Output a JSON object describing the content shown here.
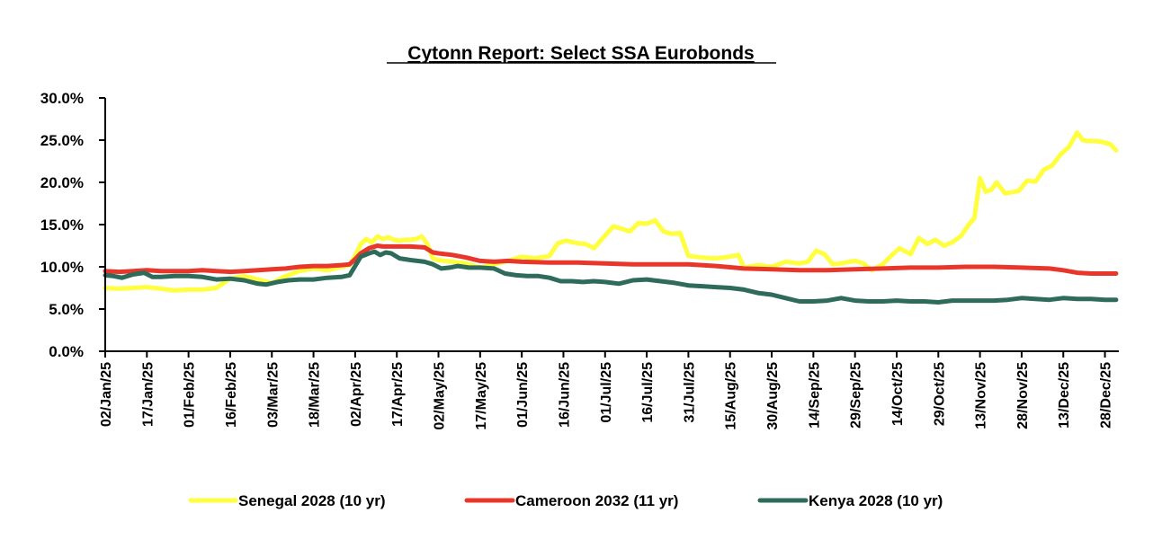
{
  "chart_data": {
    "type": "line",
    "title": "Cytonn Report: Select SSA Eurobonds",
    "xlabel": "",
    "ylabel": "",
    "ylim": [
      0,
      30
    ],
    "y_ticks": [
      "0.0%",
      "5.0%",
      "10.0%",
      "15.0%",
      "20.0%",
      "25.0%",
      "30.0%"
    ],
    "y_tick_values": [
      0,
      5,
      10,
      15,
      20,
      25,
      30
    ],
    "x_range_days": [
      0,
      365
    ],
    "x_ticks": [
      "02/Jan/25",
      "17/Jan/25",
      "01/Feb/25",
      "16/Feb/25",
      "03/Mar/25",
      "18/Mar/25",
      "02/Apr/25",
      "17/Apr/25",
      "02/May/25",
      "17/May/25",
      "01/Jun/25",
      "16/Jun/25",
      "01/Jul/25",
      "16/Jul/25",
      "31/Jul/25",
      "15/Aug/25",
      "30/Aug/25",
      "14/Sep/25",
      "29/Sep/25",
      "14/Oct/25",
      "29/Oct/25",
      "13/Nov/25",
      "28/Nov/25",
      "13/Dec/25",
      "28/Dec/25"
    ],
    "x_tick_days": [
      0,
      15,
      30,
      45,
      60,
      75,
      90,
      105,
      120,
      135,
      150,
      165,
      180,
      195,
      210,
      225,
      240,
      255,
      270,
      285,
      300,
      315,
      330,
      345,
      360
    ],
    "grid": false,
    "legend_position": "bottom",
    "series": [
      {
        "name": "Senegal 2028 (10 yr)",
        "color": "#FFFF3F",
        "days": [
          0,
          5,
          10,
          15,
          20,
          25,
          30,
          35,
          40,
          45,
          50,
          55,
          60,
          65,
          70,
          75,
          80,
          85,
          88,
          90,
          92,
          94,
          96,
          98,
          100,
          102,
          104,
          106,
          108,
          110,
          112,
          114,
          116,
          118,
          120,
          125,
          130,
          135,
          140,
          145,
          150,
          155,
          160,
          163,
          166,
          170,
          173,
          176,
          180,
          183,
          186,
          189,
          192,
          195,
          198,
          201,
          204,
          207,
          210,
          215,
          220,
          225,
          228,
          230,
          235,
          240,
          245,
          250,
          253,
          256,
          259,
          262,
          265,
          268,
          270,
          273,
          276,
          280,
          283,
          286,
          290,
          293,
          296,
          299,
          302,
          305,
          308,
          311,
          313,
          315,
          317,
          319,
          321,
          324,
          326,
          329,
          332,
          335,
          338,
          341,
          344,
          347,
          350,
          352,
          354,
          356,
          359,
          362,
          364
        ],
        "values": [
          7.5,
          7.4,
          7.5,
          7.6,
          7.4,
          7.2,
          7.3,
          7.3,
          7.5,
          8.6,
          8.9,
          8.5,
          8.1,
          8.9,
          9.5,
          9.8,
          9.6,
          10.0,
          10.2,
          11.3,
          12.7,
          13.3,
          12.9,
          13.6,
          13.3,
          13.5,
          13.2,
          13.1,
          13.2,
          13.2,
          13.3,
          13.6,
          12.7,
          11.0,
          10.8,
          10.6,
          10.4,
          9.9,
          10.3,
          10.7,
          11.2,
          11.0,
          11.3,
          12.8,
          13.1,
          12.8,
          12.7,
          12.2,
          13.7,
          14.8,
          14.5,
          14.2,
          15.2,
          15.1,
          15.5,
          14.2,
          13.9,
          14.0,
          11.3,
          11.1,
          11.0,
          11.2,
          11.4,
          9.9,
          10.2,
          10.0,
          10.6,
          10.4,
          10.6,
          11.9,
          11.5,
          10.3,
          10.4,
          10.6,
          10.7,
          10.4,
          9.6,
          10.3,
          11.3,
          12.2,
          11.5,
          13.4,
          12.7,
          13.2,
          12.5,
          12.9,
          13.6,
          15.0,
          15.8,
          20.5,
          18.9,
          19.1,
          20.0,
          18.7,
          18.8,
          19.0,
          20.2,
          20.1,
          21.5,
          22.0,
          23.3,
          24.2,
          25.9,
          25.0,
          24.9,
          24.9,
          24.8,
          24.5,
          23.8
        ]
      },
      {
        "name": "Cameroon 2032 (11 yr)",
        "color": "#E8372A",
        "days": [
          0,
          5,
          10,
          15,
          20,
          25,
          30,
          35,
          40,
          45,
          50,
          55,
          60,
          65,
          70,
          75,
          80,
          85,
          88,
          90,
          92,
          95,
          98,
          100,
          105,
          110,
          115,
          118,
          120,
          125,
          130,
          135,
          140,
          145,
          150,
          160,
          170,
          180,
          190,
          200,
          210,
          220,
          230,
          240,
          250,
          260,
          270,
          280,
          290,
          300,
          310,
          320,
          330,
          340,
          345,
          350,
          355,
          360,
          364
        ],
        "values": [
          9.5,
          9.4,
          9.5,
          9.6,
          9.5,
          9.5,
          9.5,
          9.6,
          9.5,
          9.4,
          9.5,
          9.6,
          9.7,
          9.8,
          10.0,
          10.1,
          10.1,
          10.2,
          10.3,
          10.9,
          11.6,
          12.2,
          12.5,
          12.4,
          12.4,
          12.4,
          12.3,
          11.7,
          11.6,
          11.4,
          11.1,
          10.7,
          10.6,
          10.7,
          10.6,
          10.5,
          10.5,
          10.4,
          10.3,
          10.3,
          10.3,
          10.1,
          9.8,
          9.7,
          9.6,
          9.6,
          9.7,
          9.8,
          9.9,
          9.9,
          10.0,
          10.0,
          9.9,
          9.8,
          9.6,
          9.3,
          9.2,
          9.2,
          9.2
        ]
      },
      {
        "name": "Kenya 2028 (10 yr)",
        "color": "#2E6B5B",
        "days": [
          0,
          3,
          6,
          10,
          14,
          17,
          20,
          25,
          30,
          35,
          40,
          45,
          50,
          55,
          58,
          62,
          66,
          70,
          75,
          80,
          85,
          88,
          90,
          92,
          95,
          97,
          99,
          101,
          103,
          106,
          110,
          115,
          118,
          121,
          124,
          127,
          131,
          135,
          140,
          144,
          148,
          152,
          156,
          160,
          164,
          168,
          172,
          176,
          180,
          185,
          190,
          195,
          200,
          205,
          210,
          215,
          220,
          225,
          230,
          235,
          240,
          245,
          250,
          255,
          260,
          265,
          270,
          275,
          280,
          285,
          290,
          295,
          300,
          305,
          310,
          320,
          325,
          330,
          335,
          340,
          345,
          350,
          355,
          360,
          364
        ],
        "values": [
          9.0,
          8.9,
          8.7,
          9.1,
          9.3,
          8.8,
          8.8,
          8.9,
          8.9,
          8.8,
          8.5,
          8.6,
          8.4,
          8.0,
          7.9,
          8.2,
          8.4,
          8.5,
          8.5,
          8.7,
          8.8,
          9.0,
          10.1,
          11.2,
          11.6,
          11.8,
          11.4,
          11.7,
          11.6,
          11.0,
          10.8,
          10.6,
          10.3,
          9.8,
          9.9,
          10.1,
          9.9,
          9.9,
          9.8,
          9.2,
          9.0,
          8.9,
          8.9,
          8.7,
          8.3,
          8.3,
          8.2,
          8.3,
          8.2,
          8.0,
          8.4,
          8.5,
          8.3,
          8.1,
          7.8,
          7.7,
          7.6,
          7.5,
          7.3,
          6.9,
          6.7,
          6.3,
          5.9,
          5.9,
          6.0,
          6.3,
          6.0,
          5.9,
          5.9,
          6.0,
          5.9,
          5.9,
          5.8,
          6.0,
          6.0,
          6.0,
          6.1,
          6.3,
          6.2,
          6.1,
          6.3,
          6.2,
          6.2,
          6.1,
          6.1
        ]
      }
    ]
  }
}
